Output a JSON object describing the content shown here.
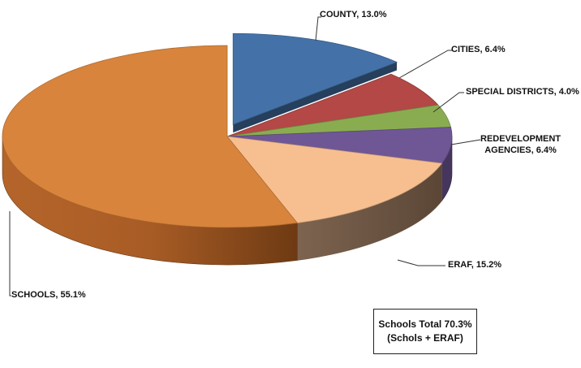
{
  "chart_data": {
    "type": "pie",
    "title": "",
    "style": "3d-exploded",
    "slices": [
      {
        "label": "COUNTY",
        "value": 13.0,
        "color": "#4472a8",
        "exploded": true
      },
      {
        "label": "CITIES",
        "value": 6.4,
        "color": "#b34846"
      },
      {
        "label": "SPECIAL DISTRICTS",
        "value": 4.0,
        "color": "#8aac50"
      },
      {
        "label": "REDEVELOPMENT AGENCIES",
        "value": 6.4,
        "color": "#6f5796"
      },
      {
        "label": "ERAF",
        "value": 15.2,
        "color": "#f7bf90"
      },
      {
        "label": "SCHOOLS",
        "value": 55.1,
        "color": "#d9843c"
      }
    ],
    "value_suffix": "%"
  },
  "labels": {
    "county": "COUNTY, 13.0%",
    "cities": "CITIES, 6.4%",
    "special_districts": "SPECIAL DISTRICTS, 4.0%",
    "redevelopment_line1": "REDEVELOPMENT",
    "redevelopment_line2": "AGENCIES, 6.4%",
    "eraf": "ERAF, 15.2%",
    "schools": "SCHOOLS, 55.1%"
  },
  "summary_box": {
    "line1": "Schools Total 70.3%",
    "line2": "(Schols + ERAF)"
  }
}
